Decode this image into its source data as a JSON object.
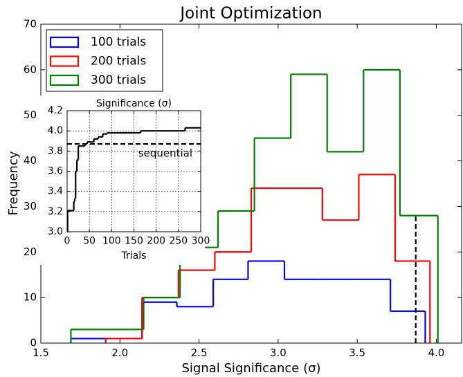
{
  "chart_data": [
    {
      "type": "histogram",
      "title": "Joint Optimization",
      "x_label": "Signal Significance (σ)",
      "y_label": "Frequency",
      "xlim": [
        1.5,
        4.16
      ],
      "ylim": [
        0,
        70
      ],
      "xticks": [
        {
          "value": 1.5,
          "label": "1.5"
        },
        {
          "value": 2.0,
          "label": "2.0"
        },
        {
          "value": 2.5,
          "label": "2.5"
        },
        {
          "value": 3.0,
          "label": "3.0"
        },
        {
          "value": 3.5,
          "label": "3.5"
        },
        {
          "value": 4.0,
          "label": "4.0"
        }
      ],
      "yticks": [
        0,
        10,
        20,
        30,
        40,
        50,
        60,
        70
      ],
      "legend": "upper left",
      "series": [
        {
          "name": "100 trials",
          "color": "#0000ff",
          "bins": [
            1.69,
            1.92,
            2.14,
            2.36,
            2.59,
            2.81,
            3.04,
            3.26,
            3.48,
            3.71,
            3.93
          ],
          "values": [
            1,
            1,
            9,
            8,
            14,
            18,
            14,
            14,
            14,
            7
          ]
        },
        {
          "name": "200 trials",
          "color": "#ff0000",
          "bins": [
            1.91,
            2.14,
            2.37,
            2.6,
            2.83,
            3.05,
            3.28,
            3.51,
            3.74,
            3.96
          ],
          "values": [
            1,
            10,
            16,
            20,
            34,
            34,
            27,
            37,
            18
          ]
        },
        {
          "name": "300 trials",
          "color": "#008000",
          "bins": [
            1.69,
            1.92,
            2.15,
            2.38,
            2.62,
            2.85,
            3.08,
            3.31,
            3.54,
            3.77,
            4.01
          ],
          "values": [
            3,
            3,
            10,
            21,
            29,
            45,
            59,
            42,
            60,
            28
          ]
        }
      ],
      "vline": {
        "x": 3.87,
        "ymax": 28,
        "color": "#000000"
      }
    },
    {
      "type": "line",
      "title": "Significance (σ)",
      "x_label": "Trials",
      "step": true,
      "grid": true,
      "color": "#000000",
      "xlim": [
        0,
        300
      ],
      "ylim": [
        3.0,
        4.2
      ],
      "xticks": [
        0,
        50,
        100,
        150,
        200,
        250,
        300
      ],
      "yticks": [
        {
          "value": 3.0,
          "label": "3.0"
        },
        3.2,
        3.4,
        3.6,
        3.8,
        {
          "value": 4.0,
          "label": "4.0"
        },
        4.2
      ],
      "x": [
        0,
        1,
        15,
        17,
        19,
        22,
        25,
        40,
        45,
        60,
        70,
        80,
        90,
        165,
        265
      ],
      "values": [
        3.0,
        3.21,
        3.3,
        3.33,
        3.6,
        3.71,
        3.85,
        3.87,
        3.89,
        3.92,
        3.94,
        3.97,
        3.98,
        4.0,
        4.03
      ],
      "hline": {
        "y": 3.87,
        "label": "sequential"
      }
    }
  ]
}
